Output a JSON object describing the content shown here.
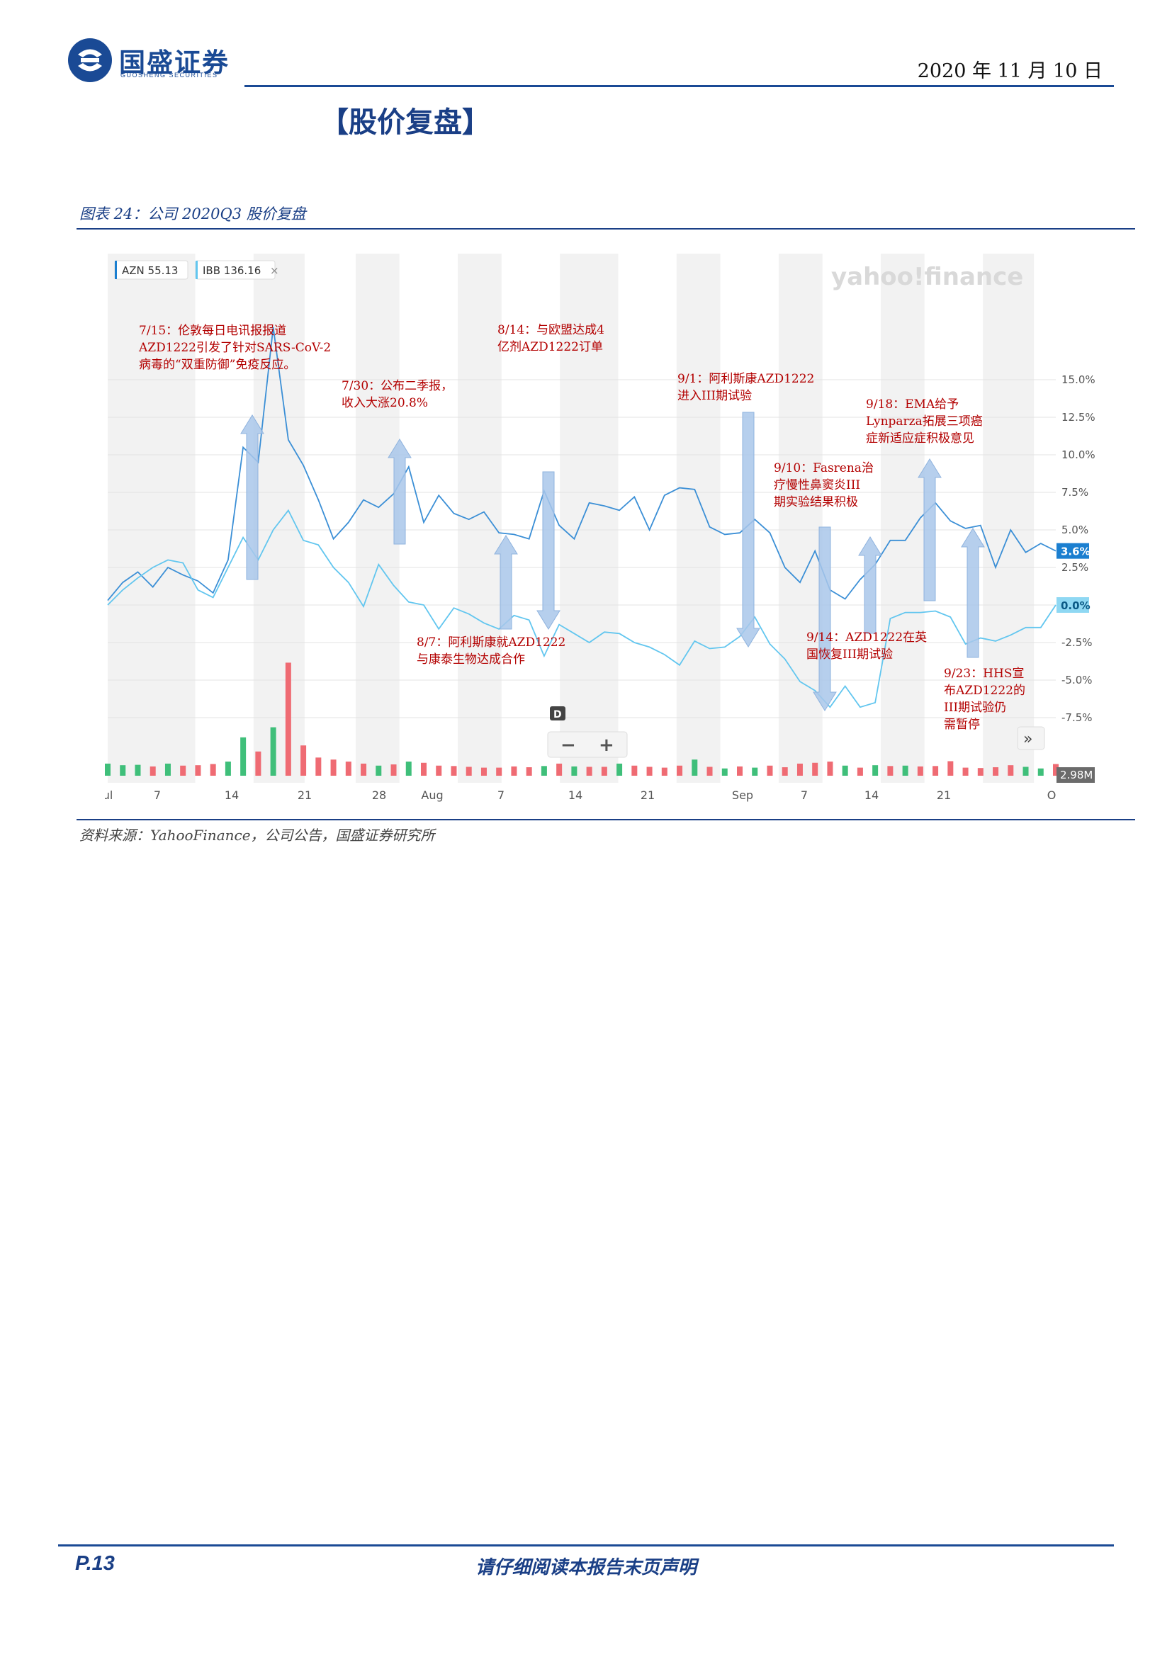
{
  "header": {
    "logo_name": "国盛证券",
    "logo_sub": "GUOSHENG SECURITIES",
    "date": "2020 年 11 月 10 日"
  },
  "section_title": "【股价复盘】",
  "figure": {
    "caption": "图表 24：公司 2020Q3 股价复盘",
    "source": "资料来源：YahooFinance，公司公告，国盛证券研究所"
  },
  "chart_data": {
    "type": "line",
    "watermark": "yahoo!finance",
    "x_tick_labels": [
      "ul",
      "7",
      "14",
      "21",
      "28",
      "Aug",
      "7",
      "14",
      "21",
      "Sep",
      "7",
      "14",
      "21",
      "O"
    ],
    "y_tick_labels": [
      "15.0%",
      "12.5%",
      "10.0%",
      "7.5%",
      "5.0%",
      "2.5%",
      "0.0%",
      "-2.5%",
      "-5.0%",
      "-7.5%"
    ],
    "ylim": [
      -7.5,
      16.0
    ],
    "series": [
      {
        "name": "AZN 55.13",
        "color": "#3b8fd6",
        "last_value_label": "3.6%",
        "values": [
          0.3,
          1.5,
          2.2,
          1.2,
          2.5,
          2.0,
          1.6,
          0.8,
          3.0,
          10.5,
          9.5,
          18.5,
          11.0,
          9.3,
          7.0,
          4.4,
          5.5,
          7.0,
          6.5,
          7.4,
          9.2,
          5.5,
          7.3,
          6.1,
          5.7,
          6.2,
          4.8,
          4.7,
          4.4,
          7.6,
          5.3,
          4.4,
          6.8,
          6.6,
          6.3,
          7.2,
          5.0,
          7.3,
          7.8,
          7.7,
          5.2,
          4.7,
          4.8,
          5.7,
          4.8,
          2.5,
          1.5,
          3.6,
          1.0,
          0.4,
          1.7,
          2.7,
          4.3,
          4.3,
          5.8,
          6.8,
          5.6,
          5.1,
          5.3,
          2.5,
          5.0,
          3.5,
          4.1,
          3.6
        ]
      },
      {
        "name": "IBB 136.16",
        "color": "#62c6ef",
        "last_value_label": "0.0%",
        "values": [
          0.0,
          1.0,
          1.8,
          2.5,
          3.0,
          2.8,
          1.0,
          0.5,
          2.5,
          4.5,
          3.0,
          5.0,
          6.3,
          4.3,
          4.0,
          2.5,
          1.5,
          -0.1,
          2.7,
          1.3,
          0.2,
          0.0,
          -1.6,
          -0.2,
          -0.6,
          -1.2,
          -1.6,
          -0.7,
          -1.0,
          -3.4,
          -1.3,
          -1.9,
          -2.5,
          -1.8,
          -1.9,
          -2.5,
          -2.8,
          -3.3,
          -4.0,
          -2.4,
          -2.9,
          -2.8,
          -2.1,
          -0.8,
          -2.6,
          -3.6,
          -5.1,
          -5.7,
          -6.8,
          -5.4,
          -6.8,
          -6.5,
          -0.9,
          -0.5,
          -0.5,
          -0.4,
          -0.8,
          -2.6,
          -2.2,
          -2.4,
          -2.0,
          -1.5,
          -1.5,
          0.0
        ]
      }
    ],
    "volume": {
      "last_label": "2.98M",
      "values": [
        3.0,
        2.6,
        2.7,
        2.3,
        3.0,
        2.5,
        2.6,
        2.9,
        3.5,
        9.5,
        6.0,
        12.0,
        28.0,
        7.5,
        4.5,
        4.0,
        3.5,
        3.0,
        2.5,
        2.8,
        3.5,
        3.2,
        2.5,
        2.4,
        2.2,
        2.0,
        2.0,
        2.3,
        2.1,
        2.4,
        3.0,
        2.3,
        2.2,
        2.2,
        3.0,
        2.5,
        2.2,
        2.0,
        2.5,
        4.0,
        2.2,
        1.8,
        2.3,
        2.0,
        2.5,
        2.1,
        3.0,
        3.2,
        3.5,
        2.5,
        2.0,
        2.6,
        2.4,
        2.5,
        2.3,
        2.4,
        3.6,
        2.0,
        1.9,
        2.1,
        2.6,
        2.2,
        1.8,
        2.9
      ],
      "colors": [
        "g",
        "g",
        "g",
        "r",
        "g",
        "r",
        "r",
        "r",
        "g",
        "g",
        "r",
        "g",
        "r",
        "r",
        "r",
        "r",
        "r",
        "r",
        "g",
        "r",
        "g",
        "r",
        "r",
        "r",
        "r",
        "r",
        "r",
        "r",
        "r",
        "g",
        "r",
        "g",
        "r",
        "r",
        "g",
        "r",
        "r",
        "r",
        "r",
        "g",
        "r",
        "g",
        "r",
        "g",
        "r",
        "r",
        "r",
        "r",
        "r",
        "g",
        "r",
        "g",
        "r",
        "g",
        "r",
        "r",
        "r",
        "r",
        "r",
        "r",
        "r",
        "g",
        "g",
        "r"
      ]
    },
    "legend": [
      "AZN 55.13",
      "IBB 136.16"
    ],
    "controls": {
      "d_label": "D",
      "minus": "−",
      "plus": "+",
      "expand": "»"
    },
    "annotations": [
      {
        "lines": [
          "7/15：伦敦每日电讯报报道",
          "AZD1222引发了针对SARS-CoV-2",
          "病毒的“双重防御”免疫反应。"
        ]
      },
      {
        "lines": [
          "7/30：公布二季报，",
          "收入大涨20.8%"
        ]
      },
      {
        "lines": [
          "8/14：与欧盟达成4",
          "亿剂AZD1222订单"
        ]
      },
      {
        "lines": [
          "9/1：阿利斯康AZD1222",
          "进入III期试验"
        ]
      },
      {
        "lines": [
          "9/18：EMA给予",
          "Lynparza拓展三项癌",
          "症新适应症积极意见"
        ]
      },
      {
        "lines": [
          "9/10：Fasrena治",
          "疗慢性鼻窦炎III",
          "期实验结果积极"
        ]
      },
      {
        "lines": [
          "8/7：阿利斯康就AZD1222",
          "与康泰生物达成合作"
        ]
      },
      {
        "lines": [
          "9/14：AZD1222在英",
          "国恢复III期试验"
        ]
      },
      {
        "lines": [
          "9/23：HHS宣",
          "布AZD1222的",
          "III期试验仍",
          "需暂停"
        ]
      }
    ]
  },
  "footer": {
    "page": "P.13",
    "disclaimer": "请仔细阅读本报告末页声明"
  }
}
